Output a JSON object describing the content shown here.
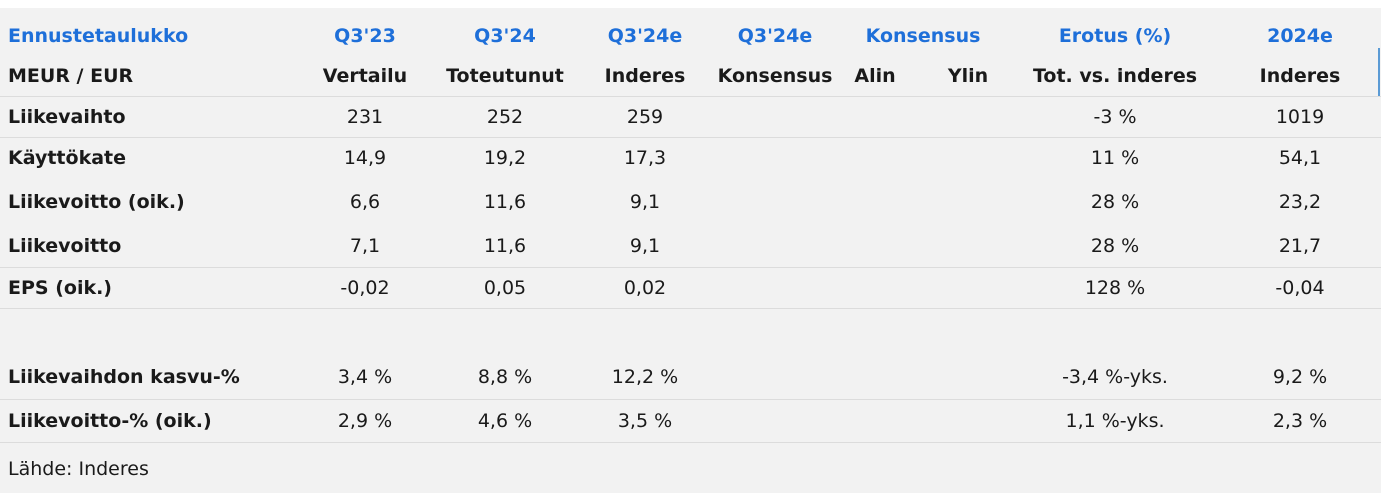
{
  "header": {
    "row1": {
      "title": "Ennustetaulukko",
      "col1": "Q3'23",
      "col2": "Q3'24",
      "col3": "Q3'24e",
      "col4": "Q3'24e",
      "col5": "Konsensus",
      "col6": "Erotus (%)",
      "col7": "2024e"
    },
    "row2": {
      "unit": "MEUR / EUR",
      "col1": "Vertailu",
      "col2": "Toteutunut",
      "col3": "Inderes",
      "col4": "Konsensus",
      "col5a": "Alin",
      "col5b": "Ylin",
      "col6": "Tot. vs. inderes",
      "col7": "Inderes"
    }
  },
  "rows": [
    {
      "label": "Liikevaihto",
      "q323": "231",
      "q324": "252",
      "q324e": "259",
      "erotus": "-3 %",
      "e2024": "1019"
    },
    {
      "label": "Käyttökate",
      "q323": "14,9",
      "q324": "19,2",
      "q324e": "17,3",
      "erotus": "11 %",
      "e2024": "54,1"
    },
    {
      "label": "Liikevoitto (oik.)",
      "q323": "6,6",
      "q324": "11,6",
      "q324e": "9,1",
      "erotus": "28 %",
      "e2024": "23,2"
    },
    {
      "label": "Liikevoitto",
      "q323": "7,1",
      "q324": "11,6",
      "q324e": "9,1",
      "erotus": "28 %",
      "e2024": "21,7"
    },
    {
      "label": "EPS (oik.)",
      "q323": "-0,02",
      "q324": "0,05",
      "q324e": "0,02",
      "erotus": "128 %",
      "e2024": "-0,04"
    },
    {
      "label": "Liikevaihdon kasvu-%",
      "q323": "3,4 %",
      "q324": "8,8 %",
      "q324e": "12,2 %",
      "erotus": "-3,4 %-yks.",
      "e2024": "9,2 %"
    },
    {
      "label": "Liikevoitto-% (oik.)",
      "q323": "2,9 %",
      "q324": "4,6 %",
      "q324e": "3,5 %",
      "erotus": "1,1 %-yks.",
      "e2024": "2,3 %"
    }
  ],
  "source": "Lähde: Inderes",
  "colors": {
    "accent": "#1e6fd9",
    "background": "#f2f2f2",
    "separator": "#dcdcdc"
  }
}
